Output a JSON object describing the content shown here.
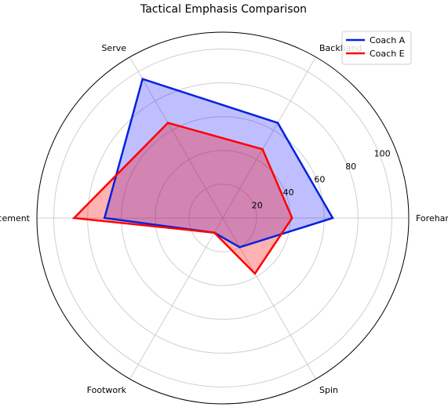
{
  "chart_data": {
    "type": "radar",
    "title": "Tactical Emphasis Comparison",
    "categories": [
      "Forehand",
      "Backhand",
      "Serve",
      "Placement",
      "Footwork",
      "Spin"
    ],
    "radial_ticks": [
      "20",
      "40",
      "60",
      "80",
      "100"
    ],
    "rlim": [
      0,
      110
    ],
    "grid": true,
    "legend_position": "top-right",
    "series": [
      {
        "name": "Coach A",
        "values": [
          65,
          65,
          95,
          70,
          10,
          20
        ],
        "color": "#0022dd",
        "fill": "#0000ff",
        "fill_opacity": 0.25
      },
      {
        "name": "Coach E",
        "values": [
          41,
          47,
          65,
          88,
          10,
          38
        ],
        "color": "#ff0000",
        "fill": "#ff0000",
        "fill_opacity": 0.3
      }
    ]
  }
}
